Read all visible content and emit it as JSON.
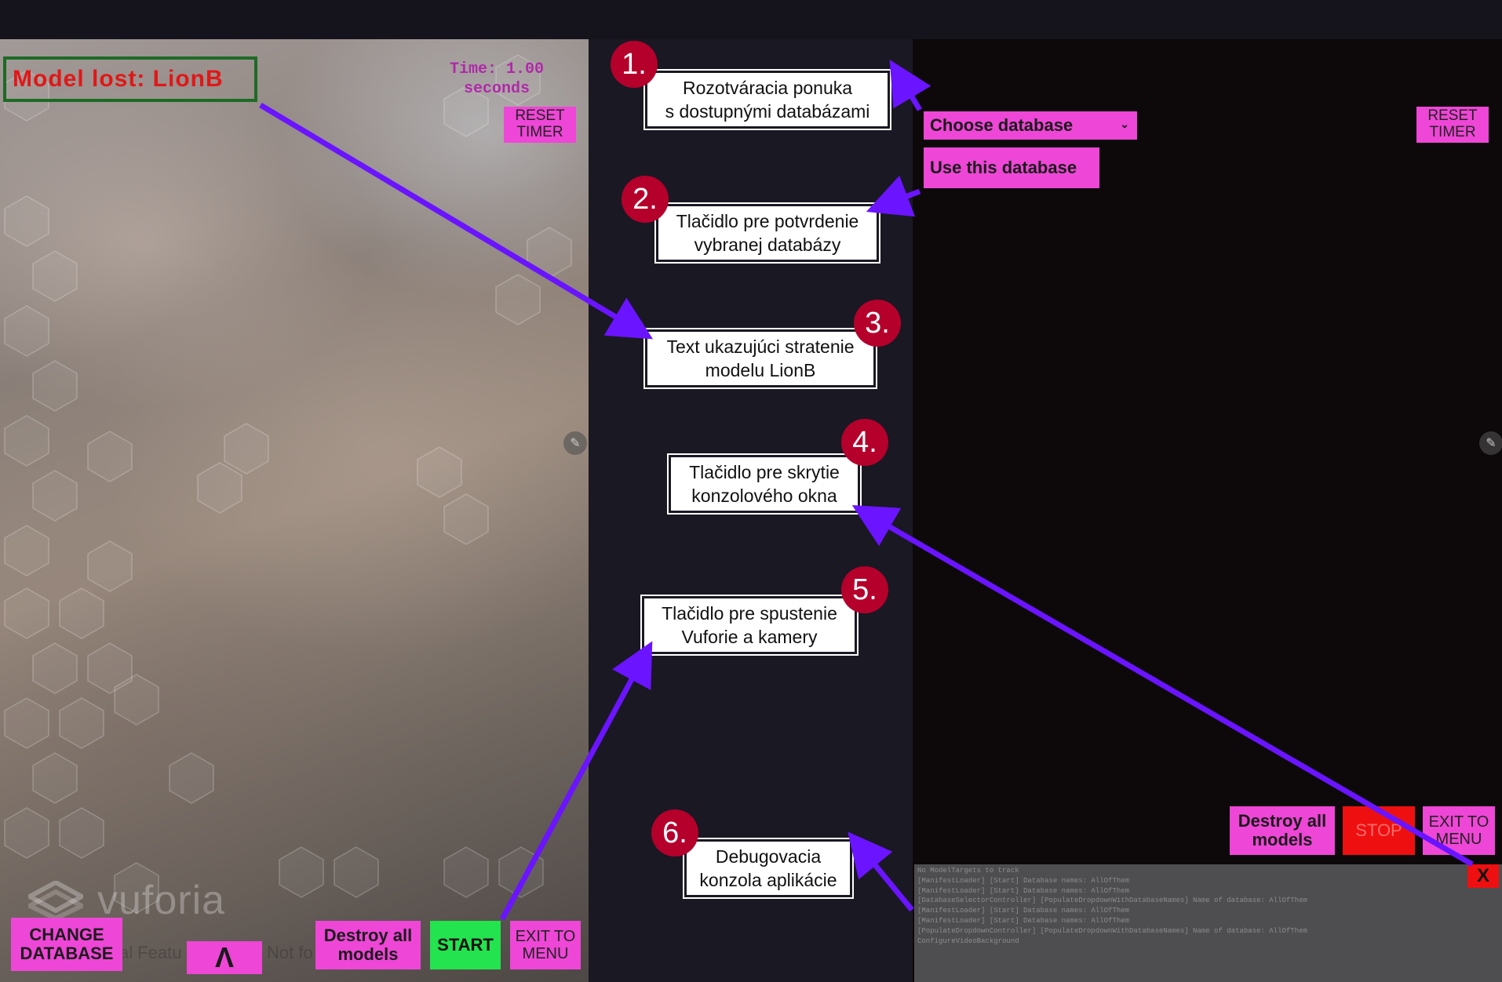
{
  "left_screen": {
    "model_lost": "Model lost: LionB",
    "timer_line1": "Time: 1.00",
    "timer_line2": "seconds",
    "reset_timer_line1": "RESET",
    "reset_timer_line2": "TIMER",
    "change_db_line1": "CHANGE",
    "change_db_line2": "DATABASE",
    "toggle_console_glyph": "Λ",
    "destroy_line1": "Destroy all",
    "destroy_line2": "models",
    "start": "START",
    "exit_line1": "EXIT TO",
    "exit_line2": "MENU",
    "vuforia_logo": "vuforia",
    "ghost_text_1": "al Featu",
    "ghost_text_2": "Not fo"
  },
  "right_screen": {
    "choose_database": "Choose database",
    "use_database": "Use this database",
    "reset_timer_line1": "RESET",
    "reset_timer_line2": "TIMER",
    "destroy_line1": "Destroy all",
    "destroy_line2": "models",
    "stop": "STOP",
    "exit_line1": "EXIT TO",
    "exit_line2": "MENU",
    "close": "X",
    "console_lines": [
      "No ModelTargets to track",
      "[ManifestLoader] [Start] Database names: AllOfThem",
      "[ManifestLoader] [Start] Database names: AllOfThem",
      "[DatabaseSelectorController] [PopulateDropdownWithDatabaseNames] Name of database: AllOfThem",
      "[ManifestLoader] [Start] Database names: AllOfThem",
      "[ManifestLoader] [Start] Database names: AllOfThem",
      "[PopulateDropdownController] [PopulateDropdownWithDatabaseNames] Name of database: AllOfThem",
      "ConfigureVideoBackground"
    ]
  },
  "annotations": [
    {
      "num": "1.",
      "line1": "Rozotváracia ponuka",
      "line2": "s dostupnými databázami"
    },
    {
      "num": "2.",
      "line1": "Tlačidlo pre potvrdenie",
      "line2": "vybranej databázy"
    },
    {
      "num": "3.",
      "line1": "Text ukazujúci stratenie",
      "line2": "modelu LionB"
    },
    {
      "num": "4.",
      "line1": "Tlačidlo pre skrytie",
      "line2": "konzolového okna"
    },
    {
      "num": "5.",
      "line1": "Tlačidlo pre spustenie",
      "line2": "Vuforie a kamery"
    },
    {
      "num": "6.",
      "line1": "Debugovacia",
      "line2": "konzola aplikácie"
    }
  ],
  "colors": {
    "background": "#1a1822",
    "button_pink": "#ee46d6",
    "start_green": "#23e34e",
    "stop_red": "#ee1010",
    "arrow_purple": "#6a14ff",
    "badge_red": "#b5002c",
    "lost_text_red": "#e01818"
  },
  "icons": [
    "pencil-icon",
    "chevron-down-icon",
    "vuforia-logo"
  ]
}
